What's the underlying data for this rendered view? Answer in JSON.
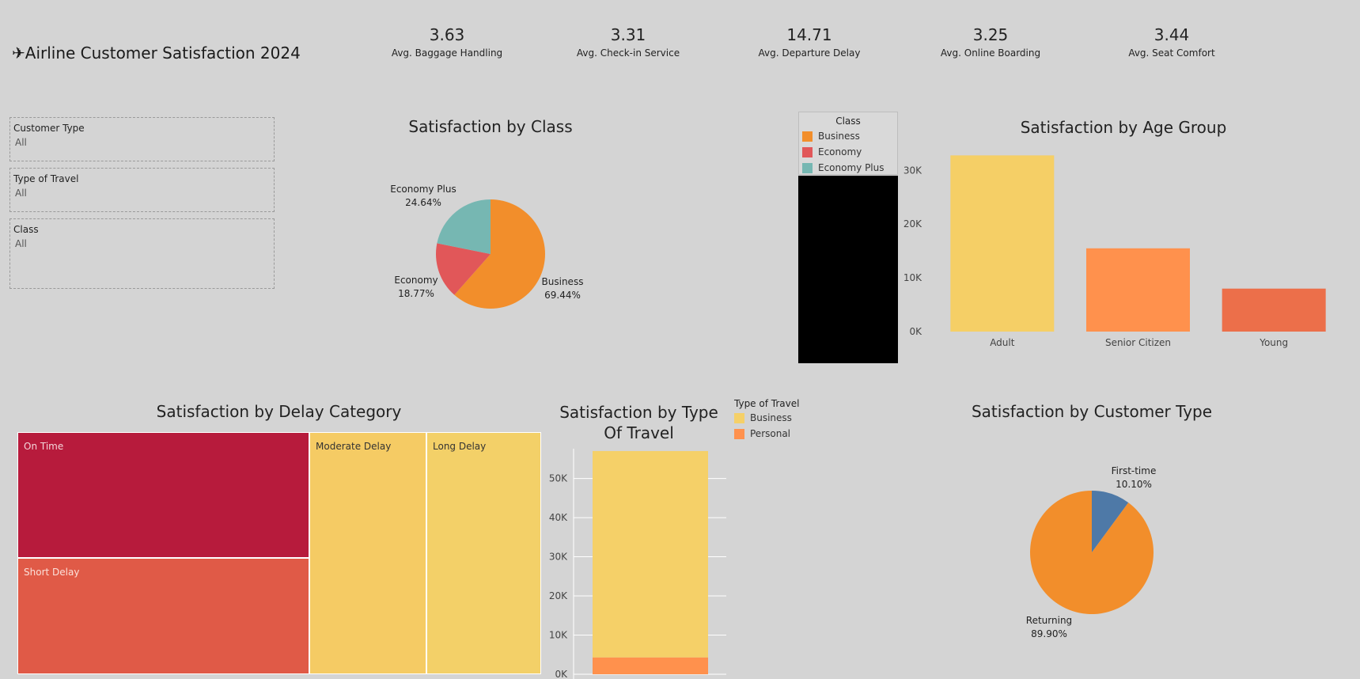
{
  "header": {
    "title": "✈Airline Customer Satisfaction  2024"
  },
  "kpis": [
    {
      "value": "3.63",
      "label": "Avg. Baggage Handling"
    },
    {
      "value": "3.31",
      "label": "Avg. Check-in Service"
    },
    {
      "value": "14.71",
      "label": "Avg. Departure Delay"
    },
    {
      "value": "3.25",
      "label": "Avg. Online Boarding"
    },
    {
      "value": "3.44",
      "label": "Avg. Seat Comfort"
    }
  ],
  "filters": [
    {
      "label": "Customer Type",
      "value": "All"
    },
    {
      "label": "Type of Travel",
      "value": "All"
    },
    {
      "label": "Class",
      "value": "All"
    }
  ],
  "chart_data": [
    {
      "type": "pie",
      "title": "Satisfaction by Class",
      "slices": [
        {
          "label": "Business",
          "pct": 69.44,
          "pct_label": "69.44%",
          "color": "#f28e2b"
        },
        {
          "label": "Economy",
          "pct": 18.77,
          "pct_label": "18.77%",
          "color": "#e15759"
        },
        {
          "label": "Economy Plus",
          "pct": 24.64,
          "pct_label": "24.64%",
          "color": "#76b7b2"
        }
      ],
      "legend": {
        "title": "Class",
        "items": [
          {
            "label": "Business",
            "color": "#f28e2b"
          },
          {
            "label": "Economy",
            "color": "#e15759"
          },
          {
            "label": "Economy Plus",
            "color": "#76b7b2"
          }
        ]
      }
    },
    {
      "type": "bar",
      "title": "Satisfaction by Age Group",
      "categories": [
        "Adult",
        "Senior Citizen",
        "Young"
      ],
      "values": [
        32800,
        15500,
        8000
      ],
      "colors": [
        "#f5cf66",
        "#ff914d",
        "#ec6f4a"
      ],
      "ylim": [
        0,
        33000
      ],
      "yticks": [
        0,
        10000,
        20000,
        30000
      ],
      "ytick_labels": [
        "0K",
        "10K",
        "20K",
        "30K"
      ]
    },
    {
      "type": "treemap",
      "title": "Satisfaction by Delay Category",
      "cells": [
        {
          "label": "On Time",
          "color": "#b71b3c",
          "text_color": "#f3d6da"
        },
        {
          "label": "Short Delay",
          "color": "#e05a47",
          "text_color": "#fbe1da"
        },
        {
          "label": "Moderate Delay",
          "color": "#f5cb64",
          "text_color": "#333333"
        },
        {
          "label": "Long Delay",
          "color": "#f3d068",
          "text_color": "#333333"
        }
      ]
    },
    {
      "type": "bar",
      "stacked": true,
      "title": "Satisfaction by Type Of Travel",
      "categories": [
        ""
      ],
      "series": [
        {
          "name": "Personal",
          "values": [
            4300
          ],
          "color": "#ff914d"
        },
        {
          "name": "Business",
          "values": [
            52700
          ],
          "color": "#f5d068"
        }
      ],
      "ylim": [
        0,
        58000
      ],
      "yticks": [
        0,
        10000,
        20000,
        30000,
        40000,
        50000
      ],
      "ytick_labels": [
        "0K",
        "10K",
        "20K",
        "30K",
        "40K",
        "50K"
      ],
      "legend": {
        "title": "Type of Travel",
        "items": [
          {
            "label": "Business",
            "color": "#f5d068"
          },
          {
            "label": "Personal",
            "color": "#ff914d"
          }
        ]
      }
    },
    {
      "type": "pie",
      "title": "Satisfaction by Customer Type",
      "slices": [
        {
          "label": "First-time",
          "pct": 10.1,
          "pct_label": "10.10%",
          "color": "#4e79a7"
        },
        {
          "label": "Returning",
          "pct": 89.9,
          "pct_label": "89.90%",
          "color": "#f28e2b"
        }
      ]
    }
  ]
}
